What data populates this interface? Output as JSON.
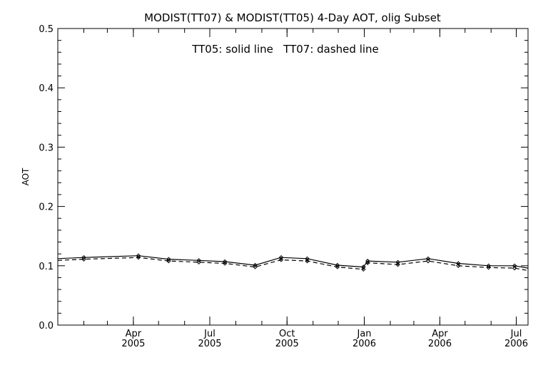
{
  "chart_data": {
    "type": "line",
    "title": "MODIST(TT07) & MODIST(TT05) 4-Day AOT, olig Subset",
    "annotation": "TT05: solid line   TT07: dashed line",
    "ylabel": "AOT",
    "xlabel": "",
    "ylim": [
      0.0,
      0.5
    ],
    "xlim": [
      "2005-01-01",
      "2006-07-15"
    ],
    "yticks": [
      "0.0",
      "0.1",
      "0.2",
      "0.3",
      "0.4",
      "0.5"
    ],
    "xticks": [
      {
        "date": "2005-04-01",
        "month": "Apr",
        "year": "2005"
      },
      {
        "date": "2005-07-01",
        "month": "Jul",
        "year": "2005"
      },
      {
        "date": "2005-10-01",
        "month": "Oct",
        "year": "2005"
      },
      {
        "date": "2006-01-01",
        "month": "Jan",
        "year": "2006"
      },
      {
        "date": "2006-04-01",
        "month": "Apr",
        "year": "2006"
      },
      {
        "date": "2006-07-01",
        "month": "Jul",
        "year": "2006"
      }
    ],
    "grid": false,
    "x": [
      "2005-01-01",
      "2005-02-01",
      "2005-04-07",
      "2005-05-13",
      "2005-06-18",
      "2005-07-19",
      "2005-08-24",
      "2005-09-24",
      "2005-10-25",
      "2005-11-30",
      "2005-12-31",
      "2006-01-05",
      "2006-02-10",
      "2006-03-18",
      "2006-04-23",
      "2006-05-29",
      "2006-06-29",
      "2006-07-15"
    ],
    "series": [
      {
        "name": "TT05",
        "style": "solid",
        "values": [
          0.112,
          0.114,
          0.117,
          0.111,
          0.109,
          0.107,
          0.101,
          0.114,
          0.112,
          0.101,
          0.098,
          0.108,
          0.106,
          0.112,
          0.104,
          0.1,
          0.1,
          0.096
        ]
      },
      {
        "name": "TT07",
        "style": "dashed",
        "values": [
          0.109,
          0.111,
          0.114,
          0.108,
          0.106,
          0.104,
          0.098,
          0.11,
          0.108,
          0.098,
          0.094,
          0.105,
          0.102,
          0.108,
          0.1,
          0.097,
          0.096,
          0.092
        ]
      }
    ]
  }
}
